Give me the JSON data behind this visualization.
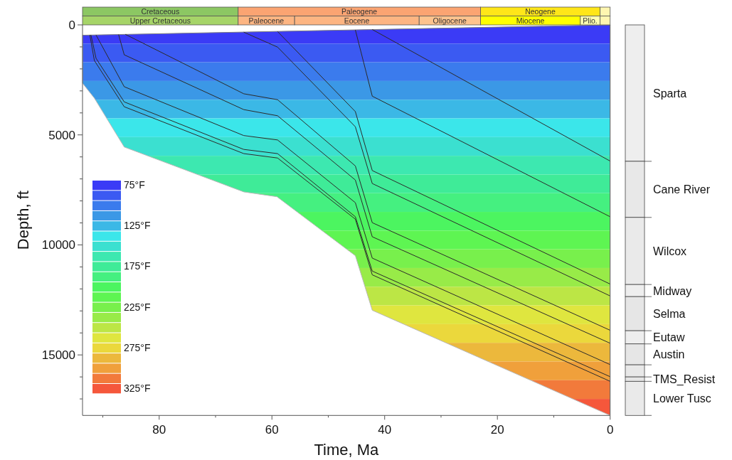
{
  "chart_data": [
    {
      "type": "line",
      "xlabel": "Time, Ma",
      "ylabel": "Depth, ft",
      "xlim": [
        93.6,
        0
      ],
      "xticks": [
        {
          "value": 90,
          "label": null
        },
        80,
        {
          "value": 70,
          "label": null
        },
        60,
        {
          "value": 50,
          "label": null
        },
        40,
        {
          "value": 30,
          "label": null
        },
        20,
        {
          "value": 10,
          "label": null
        },
        0
      ],
      "ylim": [
        17750,
        0
      ],
      "yticks": [
        0,
        {
          "value": 1000,
          "label": null
        },
        {
          "value": 2000,
          "label": null
        },
        {
          "value": 3000,
          "label": null
        },
        {
          "value": 4000,
          "label": null
        },
        5000,
        {
          "value": 6000,
          "label": null
        },
        {
          "value": 7000,
          "label": null
        },
        {
          "value": 8000,
          "label": null
        },
        {
          "value": 9000,
          "label": null
        },
        10000,
        {
          "value": 11000,
          "label": null
        },
        {
          "value": 12000,
          "label": null
        },
        {
          "value": 13000,
          "label": null
        },
        {
          "value": 14000,
          "label": null
        },
        15000,
        {
          "value": 16000,
          "label": null
        },
        {
          "value": 17000,
          "label": null
        }
      ],
      "legend": "left",
      "series": [
        {
          "type": "line",
          "color": "#808080",
          "x": [
            93.6,
            0
          ],
          "values": [
            470,
            0
          ]
        },
        {
          "type": "line",
          "color": "#b8b8b8",
          "x": [
            93.6,
            93.6,
            91.5,
            86.2,
            65,
            59.1,
            45.2,
            42.2,
            0
          ],
          "values": [
            470,
            2650,
            3330,
            5550,
            7590,
            7810,
            10490,
            12970,
            17750
          ]
        },
        {
          "type": "line",
          "color": "#2b2b2b",
          "x": [
            92.3,
            91.5,
            86.2,
            65,
            59,
            45.2,
            42.2,
            0
          ],
          "values": [
            460,
            1620,
            3720,
            5850,
            6050,
            8830,
            11360,
            16200
          ]
        },
        {
          "type": "line",
          "color": "#2b2b2b",
          "x": [
            92.1,
            91.2,
            86.2,
            65,
            59,
            45.2,
            42.2,
            0
          ],
          "values": [
            460,
            1520,
            3500,
            5660,
            5850,
            8720,
            11190,
            15990
          ]
        },
        {
          "type": "line",
          "color": "#2b2b2b",
          "x": [
            91.2,
            86.2,
            65,
            59,
            45.2,
            42.2,
            0
          ],
          "values": [
            460,
            2810,
            5030,
            5230,
            8080,
            10600,
            15440
          ]
        },
        {
          "type": "line",
          "color": "#2b2b2b",
          "x": [
            87.2,
            86.2,
            65,
            59,
            45.2,
            42.2,
            0
          ],
          "values": [
            440,
            1360,
            3850,
            4130,
            7050,
            9630,
            14470
          ]
        },
        {
          "type": "line",
          "color": "#2b2b2b",
          "x": [
            86,
            65,
            59,
            45.2,
            42.2,
            0
          ],
          "values": [
            430,
            3130,
            3400,
            6410,
            8990,
            13880
          ]
        },
        {
          "type": "line",
          "color": "#2b2b2b",
          "x": [
            65,
            59,
            45.2,
            42.2,
            0
          ],
          "values": [
            330,
            1010,
            4630,
            7210,
            12320
          ]
        },
        {
          "type": "line",
          "color": "#2b2b2b",
          "x": [
            59,
            45.2,
            42.2,
            0
          ],
          "values": [
            300,
            3940,
            6620,
            11780
          ]
        },
        {
          "type": "line",
          "color": "#2b2b2b",
          "x": [
            45.2,
            42.2,
            0
          ],
          "values": [
            230,
            3240,
            8720
          ]
        },
        {
          "type": "line",
          "color": "#2b2b2b",
          "x": [
            42.2,
            0
          ],
          "values": [
            210,
            6190
          ]
        }
      ],
      "bands": [
        {
          "axis": "y",
          "from": 0,
          "to": 850,
          "label": "75°F",
          "color": "#3b3bf6"
        },
        {
          "axis": "y",
          "from": 850,
          "to": 1700,
          "label": null,
          "color": "#3b5af2"
        },
        {
          "axis": "y",
          "from": 1700,
          "to": 2550,
          "label": null,
          "color": "#3b7bed"
        },
        {
          "axis": "y",
          "from": 2550,
          "to": 3400,
          "label": null,
          "color": "#3b98e6"
        },
        {
          "axis": "y",
          "from": 3400,
          "to": 4250,
          "label": "125°F",
          "color": "#3bb8e6"
        },
        {
          "axis": "y",
          "from": 4250,
          "to": 5100,
          "label": null,
          "color": "#3be6ea"
        },
        {
          "axis": "y",
          "from": 5100,
          "to": 5950,
          "label": null,
          "color": "#3be0d0"
        },
        {
          "axis": "y",
          "from": 5950,
          "to": 6800,
          "label": null,
          "color": "#3de8b0"
        },
        {
          "axis": "y",
          "from": 6800,
          "to": 7650,
          "label": "175°F",
          "color": "#3feb98"
        },
        {
          "axis": "y",
          "from": 7650,
          "to": 8500,
          "label": null,
          "color": "#45f080"
        },
        {
          "axis": "y",
          "from": 8500,
          "to": 9350,
          "label": null,
          "color": "#4cf560"
        },
        {
          "axis": "y",
          "from": 9350,
          "to": 10200,
          "label": null,
          "color": "#5ef552"
        },
        {
          "axis": "y",
          "from": 10200,
          "to": 11050,
          "label": "225°F",
          "color": "#78f04c"
        },
        {
          "axis": "y",
          "from": 11050,
          "to": 11900,
          "label": null,
          "color": "#98eb48"
        },
        {
          "axis": "y",
          "from": 11900,
          "to": 12750,
          "label": null,
          "color": "#bce645"
        },
        {
          "axis": "y",
          "from": 12750,
          "to": 13600,
          "label": null,
          "color": "#dfe63f"
        },
        {
          "axis": "y",
          "from": 13600,
          "to": 14450,
          "label": "275°F",
          "color": "#ebd83c"
        },
        {
          "axis": "y",
          "from": 14450,
          "to": 15300,
          "label": null,
          "color": "#ecb83c"
        },
        {
          "axis": "y",
          "from": 15300,
          "to": 16150,
          "label": null,
          "color": "#f0a03b"
        },
        {
          "axis": "y",
          "from": 16150,
          "to": 17000,
          "label": null,
          "color": "#f27a3b"
        },
        {
          "axis": "y",
          "from": 17000,
          "to": 17750,
          "label": "325°F",
          "color": "#f5573b"
        }
      ]
    },
    {
      "type": "bar",
      "stacked": true,
      "categories": [
        null
      ],
      "ylim": [
        17750,
        0
      ],
      "tick_labels": false,
      "legend": "right",
      "series": [
        {
          "name": "Sparta",
          "color": "#eeeeee",
          "values": [
            6200
          ]
        },
        {
          "name": "Cane River",
          "color": "#e8e8e8",
          "values": [
            2550
          ]
        },
        {
          "name": "Wilcox",
          "color": "#eaeaea",
          "values": [
            3050
          ]
        },
        {
          "name": "Midway",
          "color": "#eeeeee",
          "values": [
            550
          ]
        },
        {
          "name": "Selma",
          "color": "#e6e6e6",
          "values": [
            1550
          ]
        },
        {
          "name": "Eutaw",
          "color": "#eeeeee",
          "values": [
            600
          ]
        },
        {
          "name": "Austin",
          "color": "#e6e6e6",
          "values": [
            950
          ]
        },
        {
          "color": "#e8e8e8",
          "values": [
            550
          ]
        },
        {
          "name": "TMS_Resist",
          "color": "#e6e6e6",
          "values": [
            200
          ]
        },
        {
          "name": "Lower Tusc",
          "color": "#eaeaea",
          "values": [
            1550
          ]
        }
      ]
    },
    {
      "type": "bar",
      "orientation": "horizontal",
      "stacked": true,
      "categories": [
        null,
        null
      ],
      "xlim": [
        93.6,
        0
      ],
      "tick_labels": false,
      "series": [
        {
          "color": "#fff6b0",
          "values": [
            1.8,
            null
          ]
        },
        {
          "name": "Neogene",
          "color": "#ffe619",
          "values": [
            21.2,
            null
          ]
        },
        {
          "name": "Paleogene",
          "color": "#fba472",
          "values": [
            43,
            null
          ]
        },
        {
          "name": "Cretaceous",
          "color": "#8cc763",
          "values": [
            27.6,
            null
          ]
        },
        {
          "color": "#fff6b0",
          "values": [
            null,
            1.8
          ]
        },
        {
          "name": "Plio.",
          "color": "#ffffb0",
          "values": [
            null,
            3.5
          ]
        },
        {
          "name": "Miocene",
          "color": "#ffff00",
          "values": [
            null,
            17.7
          ]
        },
        {
          "name": "Oligocene",
          "color": "#fdc38e",
          "values": [
            null,
            10.9
          ]
        },
        {
          "name": "Eocene",
          "color": "#fdb582",
          "values": [
            null,
            22.1
          ]
        },
        {
          "name": "Paleocene",
          "color": "#fdb582",
          "values": [
            null,
            10
          ]
        },
        {
          "name": "Upper Cretaceous",
          "color": "#a6d468",
          "values": [
            null,
            27.6
          ]
        }
      ]
    }
  ]
}
